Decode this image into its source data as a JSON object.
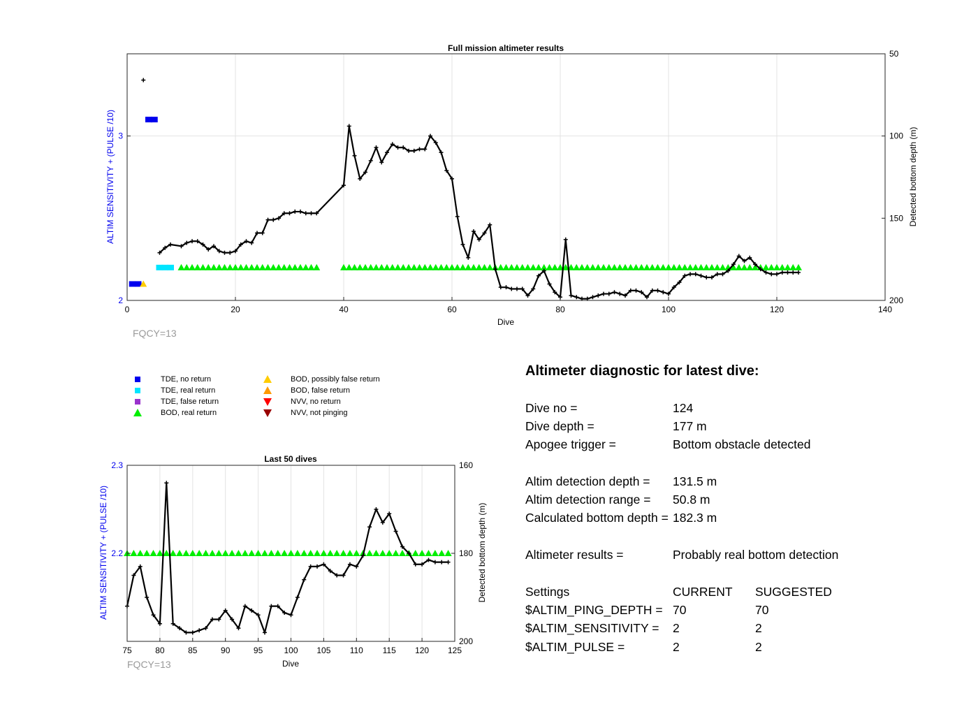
{
  "chart_data": [
    {
      "type": "line",
      "title": "Full mission altimeter results",
      "xlabel": "Dive",
      "ylabel": "ALTIM SENSITIVITY + (PULSE /10)",
      "ylabel_right": "Detected bottom depth (m)",
      "xlim": [
        0,
        140
      ],
      "ylim": [
        2,
        3.5
      ],
      "ylim_right": [
        200,
        50
      ],
      "xticks": [
        "0",
        "20",
        "40",
        "60",
        "80",
        "100",
        "120",
        "140"
      ],
      "yticks": [
        "2",
        "3"
      ],
      "yticks_right": [
        "50",
        "100",
        "150",
        "200"
      ],
      "grid": true,
      "series": [
        {
          "name": "Detected bottom depth",
          "axis": "right",
          "style": "black line with + markers",
          "x": [
            3,
            6,
            7,
            8,
            10,
            11,
            12,
            13,
            14,
            15,
            16,
            17,
            18,
            19,
            20,
            21,
            22,
            23,
            24,
            25,
            26,
            27,
            28,
            29,
            30,
            31,
            32,
            33,
            34,
            35,
            40,
            41,
            42,
            43,
            44,
            45,
            46,
            47,
            48,
            49,
            50,
            51,
            52,
            53,
            54,
            55,
            56,
            57,
            58,
            59,
            60,
            61,
            62,
            63,
            64,
            65,
            66,
            67,
            68,
            69,
            70,
            71,
            72,
            73,
            74,
            75,
            76,
            77,
            78,
            79,
            80,
            81,
            82,
            83,
            84,
            85,
            86,
            87,
            88,
            89,
            90,
            91,
            92,
            93,
            94,
            95,
            96,
            97,
            98,
            99,
            100,
            101,
            102,
            103,
            104,
            105,
            106,
            107,
            108,
            109,
            110,
            111,
            112,
            113,
            114,
            115,
            116,
            117,
            118,
            119,
            120,
            121,
            122,
            123,
            124
          ],
          "y": [
            66,
            171,
            168,
            166,
            167,
            165,
            164,
            164,
            166,
            169,
            167,
            170,
            171,
            171,
            170,
            166,
            164,
            165,
            159,
            159,
            151,
            151,
            150,
            147,
            147,
            146,
            146,
            147,
            147,
            147,
            130,
            94,
            112,
            126,
            122,
            115,
            107,
            116,
            110,
            105,
            107,
            107,
            109,
            109,
            108,
            108,
            100,
            104,
            110,
            121,
            126,
            149,
            166,
            174,
            158,
            163,
            159,
            154,
            181,
            192,
            192,
            193,
            193,
            193,
            197,
            193,
            185,
            182,
            190,
            195,
            198,
            163,
            197,
            198,
            199,
            199,
            198,
            197,
            196,
            196,
            195,
            196,
            197,
            194,
            194,
            195,
            198,
            194,
            194,
            195,
            196,
            192,
            189,
            185,
            184,
            184,
            185,
            186,
            186,
            184,
            184,
            182,
            178,
            173,
            176,
            174,
            178,
            181,
            183,
            184,
            184,
            183,
            183,
            183,
            183
          ]
        },
        {
          "name": "TDE, no return",
          "axis": "left",
          "marker": "square",
          "color": "#0000ee",
          "x": [
            1,
            2,
            4,
            5
          ],
          "y": [
            2.1,
            2.1,
            3.1,
            3.1
          ]
        },
        {
          "name": "TDE, real return",
          "axis": "left",
          "marker": "square",
          "color": "#00e5ff",
          "x": [
            6,
            7,
            8
          ],
          "y": [
            2.2,
            2.2,
            2.2
          ]
        },
        {
          "name": "BOD, possibly false return",
          "axis": "left",
          "marker": "triangle-up",
          "color": "#ffcc00",
          "x": [
            3
          ],
          "y": [
            2.1
          ]
        },
        {
          "name": "BOD, real return",
          "axis": "left",
          "marker": "triangle-up",
          "color": "#00ee00",
          "x_ranges": [
            [
              10,
              35
            ],
            [
              40,
              124
            ]
          ],
          "y": 2.2
        }
      ],
      "annotation": "FQCY=13"
    },
    {
      "type": "line",
      "title": "Last 50 dives",
      "xlabel": "Dive",
      "ylabel": "ALTIM SENSITIVITY + (PULSE /10)",
      "ylabel_right": "Detected bottom depth (m)",
      "xlim": [
        75,
        125
      ],
      "ylim": [
        2.1,
        2.3
      ],
      "ylim_right": [
        200,
        160
      ],
      "xticks": [
        "75",
        "80",
        "85",
        "90",
        "95",
        "100",
        "105",
        "110",
        "115",
        "120",
        "125"
      ],
      "yticks": [
        "2.2",
        "2.3"
      ],
      "yticks_right": [
        "160",
        "180",
        "200"
      ],
      "grid": true,
      "series": [
        {
          "name": "Detected bottom depth",
          "axis": "right",
          "style": "black line with + markers",
          "x": [
            75,
            76,
            77,
            78,
            79,
            80,
            81,
            82,
            83,
            84,
            85,
            86,
            87,
            88,
            89,
            90,
            91,
            92,
            93,
            94,
            95,
            96,
            97,
            98,
            99,
            100,
            101,
            102,
            103,
            104,
            105,
            106,
            107,
            108,
            109,
            110,
            111,
            112,
            113,
            114,
            115,
            116,
            117,
            118,
            119,
            120,
            121,
            122,
            123,
            124
          ],
          "y": [
            192,
            185,
            183,
            190,
            194,
            196,
            164,
            196,
            197,
            198,
            198,
            197.5,
            197,
            195,
            195,
            193,
            195,
            197,
            192,
            193,
            194,
            198,
            192,
            192,
            193.5,
            194,
            190,
            186,
            183,
            183,
            182.5,
            184,
            185,
            185,
            182.5,
            183,
            180.5,
            174,
            170,
            173,
            171,
            175,
            178.5,
            180,
            182.5,
            182.5,
            181.5,
            182,
            182,
            182
          ]
        },
        {
          "name": "BOD, real return",
          "axis": "left",
          "marker": "triangle-up",
          "color": "#00ee00",
          "x_range": [
            75,
            124
          ],
          "y": 2.2
        }
      ],
      "annotation": "FQCY=13"
    }
  ],
  "annotations": {
    "fqcy_top": "FQCY=13",
    "fqcy_bottom": "FQCY=13"
  },
  "legend": {
    "items": [
      {
        "label": "TDE, no return",
        "marker": "square",
        "color": "#0000ee"
      },
      {
        "label": "TDE, real return",
        "marker": "square",
        "color": "#00e5ff"
      },
      {
        "label": "TDE, false return",
        "marker": "square",
        "color": "#9933cc"
      },
      {
        "label": "BOD, real return",
        "marker": "triangle-up",
        "color": "#00ee00"
      },
      {
        "label": "BOD, possibly false return",
        "marker": "triangle-up",
        "color": "#ffcc00"
      },
      {
        "label": "BOD, false return",
        "marker": "triangle-up",
        "color": "#ff9900"
      },
      {
        "label": "NVV, no return",
        "marker": "triangle-down",
        "color": "#ff0000"
      },
      {
        "label": "NVV, not pinging",
        "marker": "triangle-down",
        "color": "#990000"
      }
    ]
  },
  "diagnostic": {
    "title": "Altimeter diagnostic for latest dive:",
    "dive_no_label": "Dive no =",
    "dive_no": "124",
    "dive_depth_label": "Dive depth =",
    "dive_depth": "177 m",
    "apogee_label": "Apogee trigger =",
    "apogee": "Bottom obstacle detected",
    "altim_depth_label": "Altim detection depth =",
    "altim_depth": "131.5 m",
    "altim_range_label": "Altim detection range =",
    "altim_range": "50.8 m",
    "calc_depth_label": "Calculated bottom depth =",
    "calc_depth": "182.3 m",
    "results_label": "Altimeter results =",
    "results": "Probably real bottom detection",
    "settings_label": "Settings",
    "current_label": "CURRENT",
    "suggested_label": "SUGGESTED",
    "ping_label": "$ALTIM_PING_DEPTH =",
    "ping_current": "70",
    "ping_suggested": "70",
    "sens_label": "$ALTIM_SENSITIVITY =",
    "sens_current": "2",
    "sens_suggested": "2",
    "pulse_label": "$ALTIM_PULSE =",
    "pulse_current": "2",
    "pulse_suggested": "2"
  }
}
